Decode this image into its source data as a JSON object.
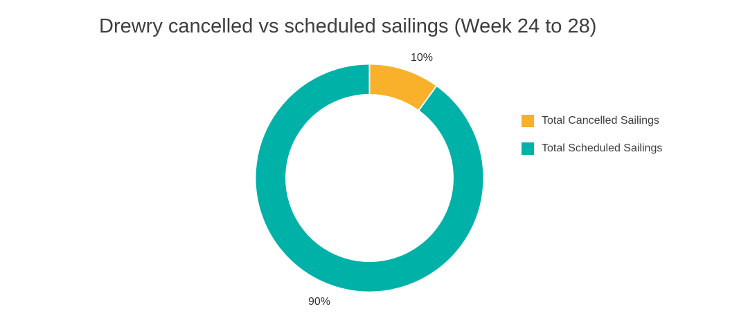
{
  "chart_data": {
    "type": "pie",
    "variant": "donut",
    "title": "Drewry cancelled vs scheduled sailings (Week 24 to 28)",
    "slices": [
      {
        "label": "Total Cancelled Sailings",
        "value": 10,
        "percent_label": "10%",
        "color": "#F9B02A"
      },
      {
        "label": "Total Scheduled Sailings",
        "value": 90,
        "percent_label": "90%",
        "color": "#00B1A8"
      }
    ],
    "start_angle_deg": 0,
    "direction": "clockwise",
    "inner_radius_ratio": 0.73,
    "slice_border_color": "#FFFFFF",
    "legend_position": "right",
    "background_color": "#FFFFFF",
    "labels_outside": true
  },
  "legend": {
    "items": [
      {
        "label": "Total Cancelled Sailings"
      },
      {
        "label": "Total Scheduled Sailings"
      }
    ]
  }
}
